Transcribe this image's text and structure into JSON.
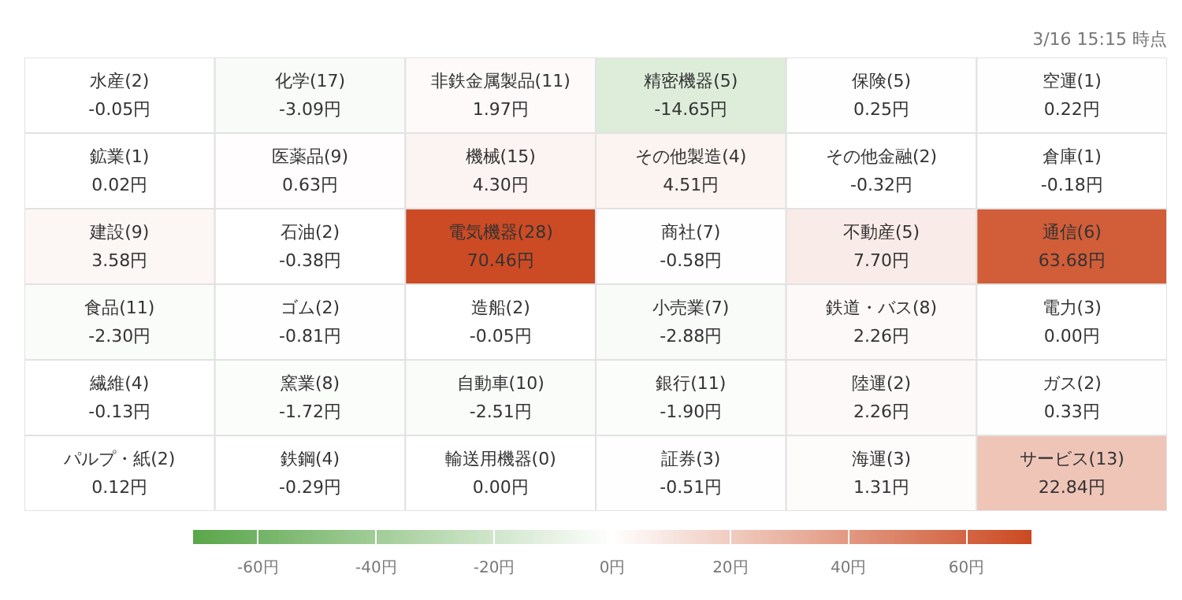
{
  "chart_data": {
    "type": "heatmap",
    "subtitle": "3/16 15:15 時点",
    "categories": [
      null,
      null,
      null,
      null,
      null,
      null
    ],
    "y_categories": [
      null,
      null,
      null,
      null,
      null,
      null
    ],
    "cells": [
      [
        -0.05,
        -3.09,
        1.97,
        -14.65,
        0.25,
        0.22
      ],
      [
        0.02,
        0.63,
        4.3,
        4.51,
        -0.32,
        -0.18
      ],
      [
        3.58,
        -0.38,
        70.46,
        -0.58,
        7.7,
        63.68
      ],
      [
        -2.3,
        -0.81,
        -0.05,
        -2.88,
        2.26,
        0.0
      ],
      [
        -0.13,
        -1.72,
        -2.51,
        -1.9,
        2.26,
        0.33
      ],
      [
        0.12,
        -0.29,
        0.0,
        -0.51,
        1.31,
        22.84
      ]
    ],
    "cell_labels": [
      [
        "水産(2)\n-0.05円",
        "化学(17)\n-3.09円",
        "非鉄金属製品(11)\n1.97円",
        "精密機器(5)\n-14.65円",
        "保険(5)\n0.25円",
        "空運(1)\n0.22円"
      ],
      [
        "鉱業(1)\n0.02円",
        "医薬品(9)\n0.63円",
        "機械(15)\n4.30円",
        "その他製造(4)\n4.51円",
        "その他金融(2)\n-0.32円",
        "倉庫(1)\n-0.18円"
      ],
      [
        "建設(9)\n3.58円",
        "石油(2)\n-0.38円",
        "電気機器(28)\n70.46円",
        "商社(7)\n-0.58円",
        "不動産(5)\n7.70円",
        "通信(6)\n63.68円"
      ],
      [
        "食品(11)\n-2.30円",
        "ゴム(2)\n-0.81円",
        "造船(2)\n-0.05円",
        "小売業(7)\n-2.88円",
        "鉄道・バス(8)\n2.26円",
        "電力(3)\n0.00円"
      ],
      [
        "繊維(4)\n-0.13円",
        "窯業(8)\n-1.72円",
        "自動車(10)\n-2.51円",
        "銀行(11)\n-1.90円",
        "陸運(2)\n2.26円",
        "ガス(2)\n0.33円"
      ],
      [
        "パルプ・紙(2)\n0.12円",
        "鉄鋼(4)\n-0.29円",
        "輸送用機器(0)\n0.00円",
        "証券(3)\n-0.51円",
        "海運(3)\n1.31円",
        "サービス(13)\n22.84円"
      ]
    ],
    "clim": [
      -71,
      71
    ],
    "cticks": [
      {
        "value": -60,
        "label": "-60円"
      },
      {
        "value": -40,
        "label": "-40円"
      },
      {
        "value": -20,
        "label": "-20円"
      },
      {
        "value": 0,
        "label": "0円"
      },
      {
        "value": 20,
        "label": "20円"
      },
      {
        "value": 40,
        "label": "40円"
      },
      {
        "value": 60,
        "label": "60円"
      }
    ],
    "colors": [
      "#5aa64a",
      "#ffffff",
      "#cc4a22"
    ]
  }
}
